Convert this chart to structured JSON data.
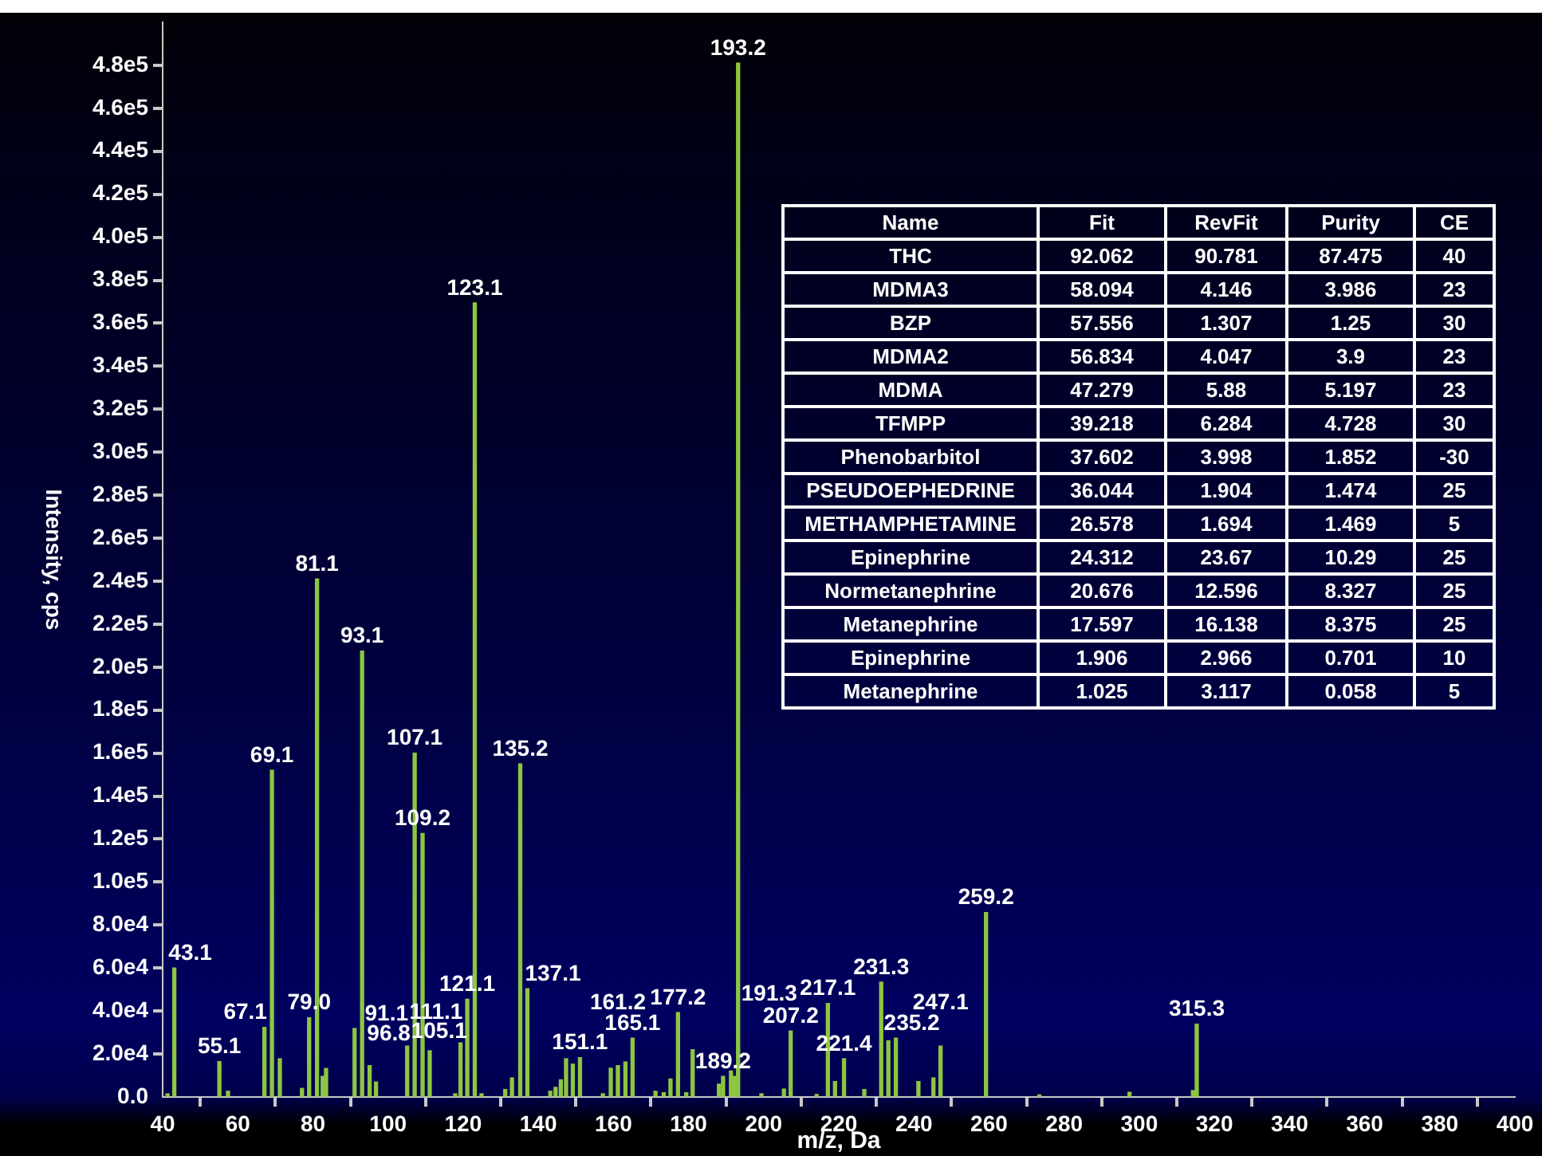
{
  "chart_data": {
    "type": "bar",
    "xlabel": "m/z, Da",
    "ylabel": "Intensity, cps",
    "color": "#8dc641",
    "x": [
      41.3,
      43.1,
      55.1,
      57.4,
      67.1,
      69.1,
      71.2,
      77.1,
      79.0,
      81.1,
      82.6,
      83.5,
      91.1,
      93.1,
      95.1,
      96.8,
      105.1,
      107.1,
      109.2,
      111.1,
      117.9,
      119.3,
      121.1,
      123.1,
      124.9,
      131.2,
      133.0,
      135.2,
      137.1,
      143.2,
      144.6,
      146.0,
      147.4,
      149.2,
      151.1,
      157.2,
      159.3,
      161.2,
      163.2,
      165.1,
      171.2,
      173.4,
      175.2,
      177.2,
      179.4,
      181.1,
      188.1,
      189.2,
      191.3,
      192.3,
      193.2,
      199.4,
      205.4,
      207.2,
      214.1,
      217.1,
      219.0,
      221.4,
      226.8,
      231.3,
      233.2,
      235.2,
      241.2,
      245.2,
      247.1,
      259.2,
      273.4,
      297.4,
      314.3,
      315.3
    ],
    "values": [
      1500,
      60000,
      16500,
      2700,
      32400,
      152000,
      17800,
      4000,
      36900,
      241000,
      9600,
      13300,
      31900,
      207500,
      14600,
      7000,
      23700,
      160000,
      122600,
      21500,
      1500,
      25200,
      45500,
      369500,
      1500,
      3500,
      8900,
      155000,
      50400,
      2700,
      4500,
      8000,
      17800,
      15300,
      18300,
      1500,
      13400,
      14600,
      16300,
      27400,
      2700,
      2000,
      8400,
      39300,
      2000,
      22000,
      6000,
      9600,
      12100,
      9600,
      481000,
      1500,
      3700,
      30700,
      1200,
      43500,
      7200,
      17800,
      3500,
      53400,
      26200,
      27400,
      7200,
      8900,
      23700,
      85800,
      1000,
      2200,
      3000,
      33900
    ],
    "xlim": [
      40,
      400
    ],
    "xticks": [
      40,
      60,
      80,
      100,
      120,
      140,
      160,
      180,
      200,
      220,
      240,
      260,
      280,
      300,
      320,
      340,
      360,
      380,
      400
    ],
    "ylim": [
      0,
      500000
    ],
    "yticks": [
      {
        "value": 0,
        "label": "0.0"
      },
      {
        "value": 20000,
        "label": "2.0e4"
      },
      {
        "value": 40000,
        "label": "4.0e4"
      },
      {
        "value": 60000,
        "label": "6.0e4"
      },
      {
        "value": 80000,
        "label": "8.0e4"
      },
      {
        "value": 100000,
        "label": "1.0e5"
      },
      {
        "value": 120000,
        "label": "1.2e5"
      },
      {
        "value": 140000,
        "label": "1.4e5"
      },
      {
        "value": 160000,
        "label": "1.6e5"
      },
      {
        "value": 180000,
        "label": "1.8e5"
      },
      {
        "value": 200000,
        "label": "2.0e5"
      },
      {
        "value": 220000,
        "label": "2.2e5"
      },
      {
        "value": 240000,
        "label": "2.4e5"
      },
      {
        "value": 260000,
        "label": "2.6e5"
      },
      {
        "value": 280000,
        "label": "2.8e5"
      },
      {
        "value": 300000,
        "label": "3.0e5"
      },
      {
        "value": 320000,
        "label": "3.2e5"
      },
      {
        "value": 340000,
        "label": "3.4e5"
      },
      {
        "value": 360000,
        "label": "3.6e5"
      },
      {
        "value": 380000,
        "label": "3.8e5"
      },
      {
        "value": 400000,
        "label": "4.0e5"
      },
      {
        "value": 420000,
        "label": "4.2e5"
      },
      {
        "value": 440000,
        "label": "4.4e5"
      },
      {
        "value": 460000,
        "label": "4.6e5"
      },
      {
        "value": 480000,
        "label": "4.8e5"
      }
    ],
    "annotations": [
      {
        "text": "43.1",
        "x": 43.1,
        "y": 60000
      },
      {
        "text": "55.1",
        "x": 55.1,
        "y": 16500
      },
      {
        "text": "67.1",
        "x": 67.1,
        "y": 32400
      },
      {
        "text": "69.1",
        "x": 69.1,
        "y": 152000
      },
      {
        "text": "79.0",
        "x": 79.0,
        "y": 36900
      },
      {
        "text": "81.1",
        "x": 81.1,
        "y": 241000
      },
      {
        "text": "91.1",
        "x": 91.1,
        "y": 31900
      },
      {
        "text": "93.1",
        "x": 93.1,
        "y": 207500
      },
      {
        "text": "96.8",
        "x": 96.8,
        "y": 7000
      },
      {
        "text": "105.1",
        "x": 105.1,
        "y": 23700
      },
      {
        "text": "107.1",
        "x": 107.1,
        "y": 160000
      },
      {
        "text": "109.2",
        "x": 109.2,
        "y": 122600
      },
      {
        "text": "111.1",
        "x": 111.1,
        "y": 21500
      },
      {
        "text": "121.1",
        "x": 121.1,
        "y": 45500
      },
      {
        "text": "123.1",
        "x": 123.1,
        "y": 369500
      },
      {
        "text": "135.2",
        "x": 135.2,
        "y": 155000
      },
      {
        "text": "137.1",
        "x": 137.1,
        "y": 50400
      },
      {
        "text": "151.1",
        "x": 151.1,
        "y": 18300
      },
      {
        "text": "161.2",
        "x": 161.2,
        "y": 14600
      },
      {
        "text": "165.1",
        "x": 165.1,
        "y": 27400
      },
      {
        "text": "177.2",
        "x": 177.2,
        "y": 39300
      },
      {
        "text": "189.2",
        "x": 189.2,
        "y": 9600
      },
      {
        "text": "191.3",
        "x": 191.3,
        "y": 12100
      },
      {
        "text": "193.2",
        "x": 193.2,
        "y": 481000
      },
      {
        "text": "207.2",
        "x": 207.2,
        "y": 30700
      },
      {
        "text": "217.1",
        "x": 217.1,
        "y": 43500
      },
      {
        "text": "221.4",
        "x": 221.4,
        "y": 17800
      },
      {
        "text": "231.3",
        "x": 231.3,
        "y": 53400
      },
      {
        "text": "235.2",
        "x": 235.2,
        "y": 27400
      },
      {
        "text": "247.1",
        "x": 247.1,
        "y": 23700
      },
      {
        "text": "259.2",
        "x": 259.2,
        "y": 85800
      },
      {
        "text": "315.3",
        "x": 315.3,
        "y": 33900
      },
      "Name",
      "Fit",
      "RevFit",
      "Purity",
      "CE",
      "THC",
      "92.062",
      "90.781",
      "87.475",
      "40",
      "MDMA3",
      "58.094",
      "4.146",
      "3.986",
      "23",
      "BZP",
      "57.556",
      "1.307",
      "1.25",
      "30",
      "MDMA2",
      "56.834",
      "4.047",
      "3.9",
      "23",
      "MDMA",
      "47.279",
      "5.88",
      "5.197",
      "23",
      "TFMPP",
      "39.218",
      "6.284",
      "4.728",
      "30",
      "Phenobarbitol",
      "37.602",
      "3.998",
      "1.852",
      "-30",
      "PSEUDOEPHEDRINE",
      "36.044",
      "1.904",
      "1.474",
      "25",
      "METHAMPHETAMINE",
      "26.578",
      "1.694",
      "1.469",
      "5",
      "Epinephrine",
      "24.312",
      "23.67",
      "10.29",
      "25",
      "Normetanephrine",
      "20.676",
      "12.596",
      "8.327",
      "25",
      "Metanephrine",
      "17.597",
      "16.138",
      "8.375",
      "25",
      "Epinephrine",
      "1.906",
      "2.966",
      "0.701",
      "10",
      "Metanephrine",
      "1.025",
      "3.117",
      "0.058",
      "5"
    ]
  }
}
